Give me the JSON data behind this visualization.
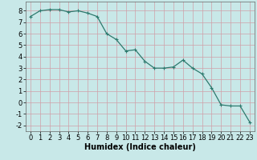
{
  "x": [
    0,
    1,
    2,
    3,
    4,
    5,
    6,
    7,
    8,
    9,
    10,
    11,
    12,
    13,
    14,
    15,
    16,
    17,
    18,
    19,
    20,
    21,
    22,
    23
  ],
  "y": [
    7.5,
    8.0,
    8.1,
    8.1,
    7.9,
    8.0,
    7.8,
    7.5,
    6.0,
    5.5,
    4.5,
    4.6,
    3.6,
    3.0,
    3.0,
    3.1,
    3.7,
    3.0,
    2.5,
    1.3,
    -0.2,
    -0.3,
    -0.3,
    -1.7
  ],
  "line_color": "#2d7a6e",
  "marker": "+",
  "marker_size": 3,
  "bg_color": "#c8e8e8",
  "grid_color": "#d0a0a8",
  "xlabel": "Humidex (Indice chaleur)",
  "xlabel_fontsize": 7,
  "tick_fontsize": 6,
  "xlim": [
    -0.5,
    23.5
  ],
  "ylim": [
    -2.5,
    8.8
  ],
  "yticks": [
    -2,
    -1,
    0,
    1,
    2,
    3,
    4,
    5,
    6,
    7,
    8
  ],
  "xticks": [
    0,
    1,
    2,
    3,
    4,
    5,
    6,
    7,
    8,
    9,
    10,
    11,
    12,
    13,
    14,
    15,
    16,
    17,
    18,
    19,
    20,
    21,
    22,
    23
  ]
}
